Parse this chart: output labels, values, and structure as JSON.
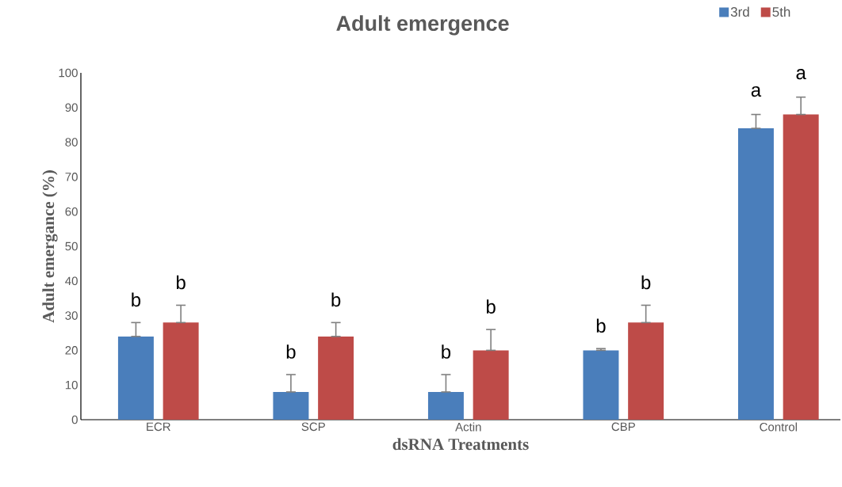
{
  "chart_data": {
    "type": "bar",
    "title": "Adult emergence",
    "xlabel": "dsRNA Treatments",
    "ylabel": "Adult emergance (%)",
    "categories": [
      "ECR",
      "SCP",
      "Actin",
      "CBP",
      "Control"
    ],
    "series": [
      {
        "name": "3rd",
        "color": "#4a7ebb",
        "values": [
          24,
          8,
          8,
          20,
          84
        ],
        "errors": [
          [
            24,
            28
          ],
          [
            8,
            13
          ],
          [
            8,
            13
          ],
          [
            20,
            20.5
          ],
          [
            84,
            88
          ]
        ]
      },
      {
        "name": "5th",
        "color": "#be4b48",
        "values": [
          28,
          24,
          20,
          28,
          88
        ],
        "errors": [
          [
            28,
            33
          ],
          [
            24,
            28
          ],
          [
            20,
            26
          ],
          [
            28,
            33
          ],
          [
            88,
            93
          ]
        ]
      }
    ],
    "ylim": [
      0,
      100
    ],
    "yticks": [
      0,
      10,
      20,
      30,
      40,
      50,
      60,
      70,
      80,
      90,
      100
    ],
    "grid": false,
    "legend": "top right",
    "annotations": [
      "b",
      "b",
      "b",
      "b",
      "b",
      "b",
      "b",
      "b",
      "a",
      "a"
    ]
  }
}
